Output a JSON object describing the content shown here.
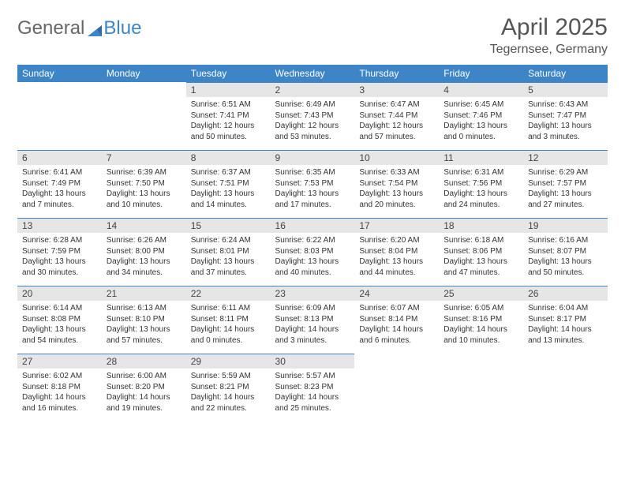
{
  "logo": {
    "text1": "General",
    "text2": "Blue"
  },
  "title": "April 2025",
  "location": "Tegernsee, Germany",
  "colors": {
    "header_bg": "#3d85c6",
    "header_fg": "#ffffff",
    "daynum_bg": "#e6e6e6",
    "border": "#3d85c6"
  },
  "weekdays": [
    "Sunday",
    "Monday",
    "Tuesday",
    "Wednesday",
    "Thursday",
    "Friday",
    "Saturday"
  ],
  "weeks": [
    [
      null,
      null,
      {
        "n": "1",
        "sr": "6:51 AM",
        "ss": "7:41 PM",
        "dl": "12 hours and 50 minutes."
      },
      {
        "n": "2",
        "sr": "6:49 AM",
        "ss": "7:43 PM",
        "dl": "12 hours and 53 minutes."
      },
      {
        "n": "3",
        "sr": "6:47 AM",
        "ss": "7:44 PM",
        "dl": "12 hours and 57 minutes."
      },
      {
        "n": "4",
        "sr": "6:45 AM",
        "ss": "7:46 PM",
        "dl": "13 hours and 0 minutes."
      },
      {
        "n": "5",
        "sr": "6:43 AM",
        "ss": "7:47 PM",
        "dl": "13 hours and 3 minutes."
      }
    ],
    [
      {
        "n": "6",
        "sr": "6:41 AM",
        "ss": "7:49 PM",
        "dl": "13 hours and 7 minutes."
      },
      {
        "n": "7",
        "sr": "6:39 AM",
        "ss": "7:50 PM",
        "dl": "13 hours and 10 minutes."
      },
      {
        "n": "8",
        "sr": "6:37 AM",
        "ss": "7:51 PM",
        "dl": "13 hours and 14 minutes."
      },
      {
        "n": "9",
        "sr": "6:35 AM",
        "ss": "7:53 PM",
        "dl": "13 hours and 17 minutes."
      },
      {
        "n": "10",
        "sr": "6:33 AM",
        "ss": "7:54 PM",
        "dl": "13 hours and 20 minutes."
      },
      {
        "n": "11",
        "sr": "6:31 AM",
        "ss": "7:56 PM",
        "dl": "13 hours and 24 minutes."
      },
      {
        "n": "12",
        "sr": "6:29 AM",
        "ss": "7:57 PM",
        "dl": "13 hours and 27 minutes."
      }
    ],
    [
      {
        "n": "13",
        "sr": "6:28 AM",
        "ss": "7:59 PM",
        "dl": "13 hours and 30 minutes."
      },
      {
        "n": "14",
        "sr": "6:26 AM",
        "ss": "8:00 PM",
        "dl": "13 hours and 34 minutes."
      },
      {
        "n": "15",
        "sr": "6:24 AM",
        "ss": "8:01 PM",
        "dl": "13 hours and 37 minutes."
      },
      {
        "n": "16",
        "sr": "6:22 AM",
        "ss": "8:03 PM",
        "dl": "13 hours and 40 minutes."
      },
      {
        "n": "17",
        "sr": "6:20 AM",
        "ss": "8:04 PM",
        "dl": "13 hours and 44 minutes."
      },
      {
        "n": "18",
        "sr": "6:18 AM",
        "ss": "8:06 PM",
        "dl": "13 hours and 47 minutes."
      },
      {
        "n": "19",
        "sr": "6:16 AM",
        "ss": "8:07 PM",
        "dl": "13 hours and 50 minutes."
      }
    ],
    [
      {
        "n": "20",
        "sr": "6:14 AM",
        "ss": "8:08 PM",
        "dl": "13 hours and 54 minutes."
      },
      {
        "n": "21",
        "sr": "6:13 AM",
        "ss": "8:10 PM",
        "dl": "13 hours and 57 minutes."
      },
      {
        "n": "22",
        "sr": "6:11 AM",
        "ss": "8:11 PM",
        "dl": "14 hours and 0 minutes."
      },
      {
        "n": "23",
        "sr": "6:09 AM",
        "ss": "8:13 PM",
        "dl": "14 hours and 3 minutes."
      },
      {
        "n": "24",
        "sr": "6:07 AM",
        "ss": "8:14 PM",
        "dl": "14 hours and 6 minutes."
      },
      {
        "n": "25",
        "sr": "6:05 AM",
        "ss": "8:16 PM",
        "dl": "14 hours and 10 minutes."
      },
      {
        "n": "26",
        "sr": "6:04 AM",
        "ss": "8:17 PM",
        "dl": "14 hours and 13 minutes."
      }
    ],
    [
      {
        "n": "27",
        "sr": "6:02 AM",
        "ss": "8:18 PM",
        "dl": "14 hours and 16 minutes."
      },
      {
        "n": "28",
        "sr": "6:00 AM",
        "ss": "8:20 PM",
        "dl": "14 hours and 19 minutes."
      },
      {
        "n": "29",
        "sr": "5:59 AM",
        "ss": "8:21 PM",
        "dl": "14 hours and 22 minutes."
      },
      {
        "n": "30",
        "sr": "5:57 AM",
        "ss": "8:23 PM",
        "dl": "14 hours and 25 minutes."
      },
      null,
      null,
      null
    ]
  ],
  "labels": {
    "sunrise": "Sunrise: ",
    "sunset": "Sunset: ",
    "daylight": "Daylight: "
  }
}
